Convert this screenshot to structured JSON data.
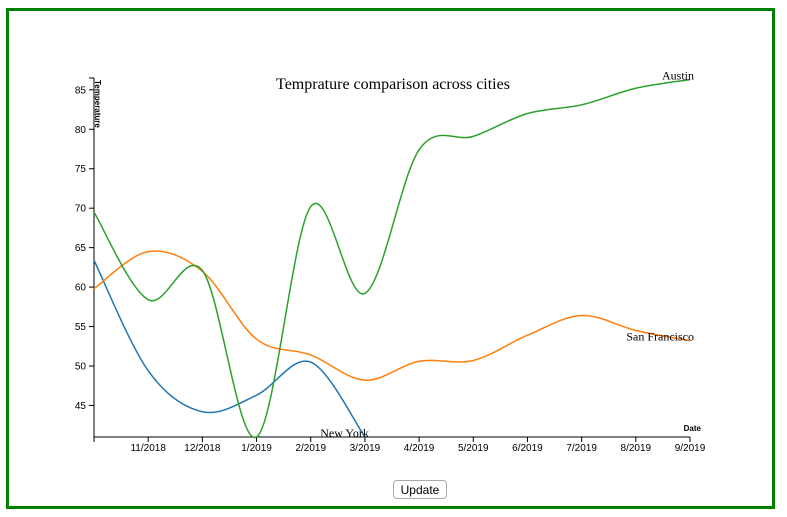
{
  "frame_color": "#008000",
  "button": {
    "update_label": "Update"
  },
  "chart_data": {
    "type": "line",
    "title": "Temprature comparison across cities",
    "xlabel": "Date",
    "ylabel": "Temperature",
    "x_ticks": [
      "11/2018",
      "12/2018",
      "1/2019",
      "2/2019",
      "3/2019",
      "4/2019",
      "5/2019",
      "6/2019",
      "7/2019",
      "8/2019",
      "9/2019"
    ],
    "y_ticks": [
      45,
      50,
      55,
      60,
      65,
      70,
      75,
      80,
      85
    ],
    "xlim": [
      "10/2018",
      "9/2019"
    ],
    "ylim": [
      41,
      86.5
    ],
    "grid": false,
    "series": [
      {
        "name": "New York",
        "color": "#1f77b4",
        "x": [
          "10/2018",
          "11/2018",
          "12/2018",
          "1/2019",
          "2/2019",
          "3/2019"
        ],
        "y": [
          63.4,
          49.4,
          44.2,
          46.3,
          50.5,
          41.0
        ]
      },
      {
        "name": "San Francisco",
        "color": "#ff7f0e",
        "x": [
          "10/2018",
          "11/2018",
          "12/2018",
          "1/2019",
          "2/2019",
          "3/2019",
          "4/2019",
          "5/2019",
          "6/2019",
          "7/2019",
          "8/2019",
          "9/2019"
        ],
        "y": [
          59.8,
          64.5,
          62.0,
          53.4,
          51.4,
          48.2,
          50.6,
          50.7,
          53.9,
          56.4,
          54.5,
          53.2
        ]
      },
      {
        "name": "Austin",
        "color": "#2ca02c",
        "x": [
          "10/2018",
          "11/2018",
          "12/2018",
          "1/2019",
          "2/2019",
          "3/2019",
          "4/2019",
          "5/2019",
          "6/2019",
          "7/2019",
          "8/2019",
          "9/2019"
        ],
        "y": [
          69.5,
          58.4,
          62.1,
          41.0,
          70.2,
          59.2,
          77.4,
          79.1,
          82.0,
          83.1,
          85.2,
          86.3
        ]
      }
    ]
  }
}
